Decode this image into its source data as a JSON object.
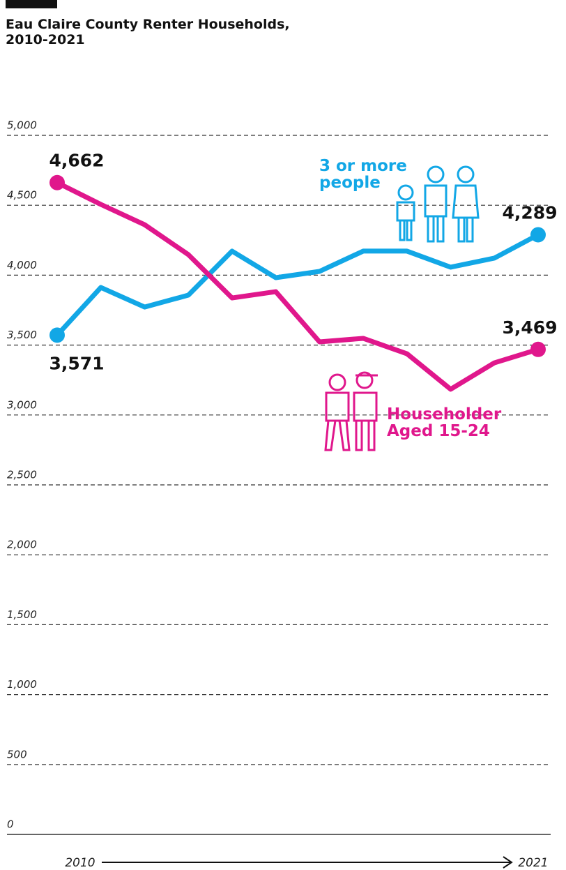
{
  "chart_data": {
    "type": "line",
    "title": "Eau Claire County Renter Households, 2010-2021",
    "categories": [
      "2010",
      null,
      null,
      null,
      null,
      null,
      null,
      null,
      null,
      null,
      null,
      "2021"
    ],
    "series": [
      {
        "name": "3 or more people",
        "color": "#12a7e6",
        "values": [
          3571,
          3912,
          3772,
          3857,
          4172,
          3982,
          4027,
          4172,
          4172,
          4057,
          4122,
          4289
        ],
        "value_labels": [
          "3,571",
          null,
          null,
          null,
          null,
          null,
          null,
          null,
          null,
          null,
          null,
          "4,289"
        ]
      },
      {
        "name": "Householder Aged 15-24",
        "color": "#e0178c",
        "values": [
          4662,
          4506,
          4361,
          4147,
          3837,
          3882,
          3523,
          3548,
          3438,
          3184,
          3373,
          3469
        ],
        "value_labels": [
          "4,662",
          null,
          null,
          null,
          null,
          null,
          null,
          null,
          null,
          null,
          null,
          "3,469"
        ]
      }
    ],
    "ylim": [
      0,
      5000
    ],
    "yticks": [
      0,
      500,
      {
        "value": 1000,
        "label": "1,000"
      },
      {
        "value": 1500,
        "label": "1,500"
      },
      {
        "value": 2000,
        "label": "2,000"
      },
      {
        "value": 2500,
        "label": "2,500"
      },
      {
        "value": 3000,
        "label": "3,000"
      },
      {
        "value": 3500,
        "label": "3,500"
      },
      {
        "value": 4000,
        "label": "4,000"
      },
      {
        "value": 4500,
        "label": "4,500"
      },
      {
        "value": 5000,
        "label": "5,000"
      }
    ],
    "grid": true
  }
}
